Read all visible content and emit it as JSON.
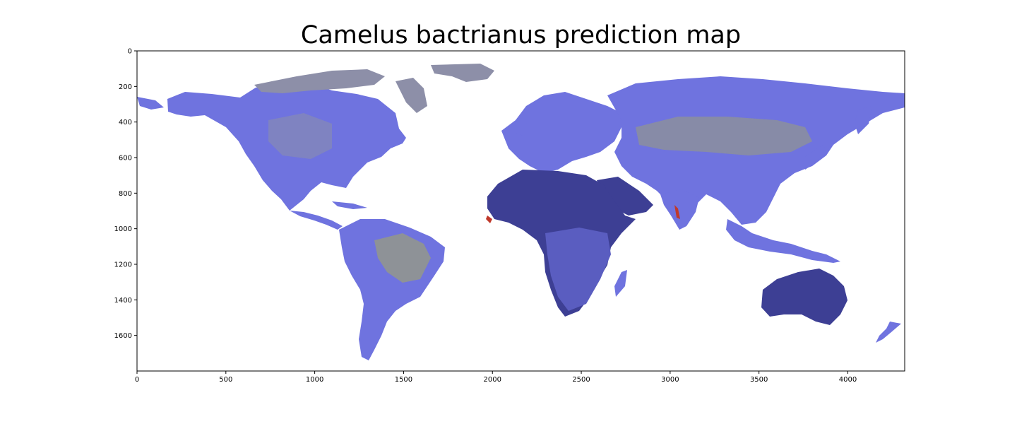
{
  "title": "Camelus bactrianus prediction map",
  "x_axis": {
    "ticks": [
      0,
      500,
      1000,
      1500,
      2000,
      2500,
      3000,
      3500,
      4000
    ],
    "range": [
      0,
      4320
    ]
  },
  "y_axis": {
    "ticks": [
      0,
      200,
      400,
      600,
      800,
      1000,
      1200,
      1400,
      1600
    ],
    "range": [
      0,
      1800
    ],
    "inverted": true
  },
  "colors": {
    "land_base": "#6f73df",
    "land_dark": "#3d3f94",
    "land_olive": "#9b9f78",
    "land_grey": "#8d8fa8",
    "hotspot": "#c0392b",
    "axes": "#000000"
  }
}
